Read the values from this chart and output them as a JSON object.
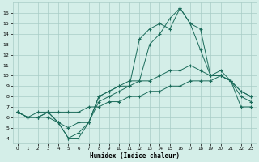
{
  "xlabel": "Humidex (Indice chaleur)",
  "x": [
    0,
    1,
    2,
    3,
    4,
    5,
    6,
    7,
    8,
    9,
    10,
    11,
    12,
    13,
    14,
    15,
    16,
    17,
    18,
    19,
    20,
    21,
    22,
    23
  ],
  "line1": [
    6.5,
    6.0,
    6.0,
    6.5,
    5.5,
    4.0,
    4.0,
    5.5,
    8.0,
    8.5,
    9.0,
    9.5,
    9.5,
    13.0,
    14.0,
    15.5,
    16.5,
    15.0,
    12.5,
    10.0,
    10.0,
    9.5,
    8.5,
    8.0
  ],
  "line2": [
    6.5,
    6.0,
    6.0,
    6.0,
    5.5,
    5.0,
    5.5,
    5.5,
    8.0,
    8.5,
    9.0,
    9.0,
    13.5,
    14.5,
    15.0,
    14.5,
    16.5,
    15.0,
    14.5,
    10.0,
    10.5,
    9.5,
    8.0,
    7.5
  ],
  "line3": [
    6.5,
    6.0,
    6.0,
    6.5,
    5.5,
    4.0,
    4.5,
    5.5,
    7.5,
    8.0,
    8.5,
    9.0,
    9.5,
    9.5,
    10.0,
    10.5,
    10.5,
    11.0,
    10.5,
    10.0,
    10.0,
    9.5,
    8.5,
    8.0
  ],
  "line4": [
    6.5,
    6.0,
    6.5,
    6.5,
    6.5,
    6.5,
    6.5,
    7.0,
    7.0,
    7.5,
    7.5,
    8.0,
    8.0,
    8.5,
    8.5,
    9.0,
    9.0,
    9.5,
    9.5,
    9.5,
    10.0,
    9.5,
    7.0,
    7.0
  ],
  "line_color": "#1a6b5a",
  "bg_color": "#d4eee8",
  "grid_color": "#a8ccc6",
  "ylim": [
    3.5,
    17
  ],
  "yticks": [
    4,
    5,
    6,
    7,
    8,
    9,
    10,
    11,
    12,
    13,
    14,
    15,
    16
  ],
  "xlim": [
    -0.5,
    23.5
  ],
  "xticks": [
    0,
    1,
    2,
    3,
    4,
    5,
    6,
    7,
    8,
    9,
    10,
    11,
    12,
    13,
    14,
    15,
    16,
    17,
    18,
    19,
    20,
    21,
    22,
    23
  ]
}
